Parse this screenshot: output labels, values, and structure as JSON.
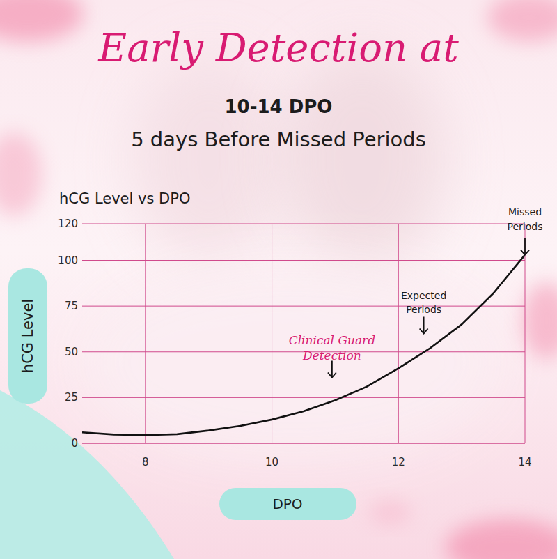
{
  "header": {
    "title": "Early Detection at",
    "lines": [
      "10-14 DPO",
      "5 days Before Missed Periods"
    ]
  },
  "chart_data": {
    "type": "line",
    "title": "hCG Level vs DPO",
    "x_label": "DPO",
    "y_label": "hCG Level",
    "x": [
      7,
      7.5,
      8,
      8.5,
      9,
      9.5,
      10,
      10.5,
      11,
      11.5,
      12,
      12.5,
      13,
      13.5,
      14
    ],
    "values": [
      6,
      4.8,
      4.5,
      5,
      7,
      9.5,
      13,
      17.5,
      23.5,
      31,
      41,
      52,
      65,
      82,
      103
    ],
    "color": "#111111",
    "xlim": [
      7,
      14
    ],
    "xticks": [
      8,
      10,
      12,
      14
    ],
    "ylim": [
      0,
      120
    ],
    "yticks": [
      0,
      25,
      50,
      75,
      100,
      120
    ],
    "grid": true,
    "annotations": [
      {
        "text": [
          "Clinical Guard",
          "Detection"
        ],
        "x": 10.95,
        "y": 36
      },
      {
        "text": [
          "Expected",
          "Periods"
        ],
        "x": 12.4,
        "y": 60
      },
      {
        "text": [
          "Missed",
          "Periods"
        ],
        "x": 14,
        "y": 103
      }
    ]
  }
}
